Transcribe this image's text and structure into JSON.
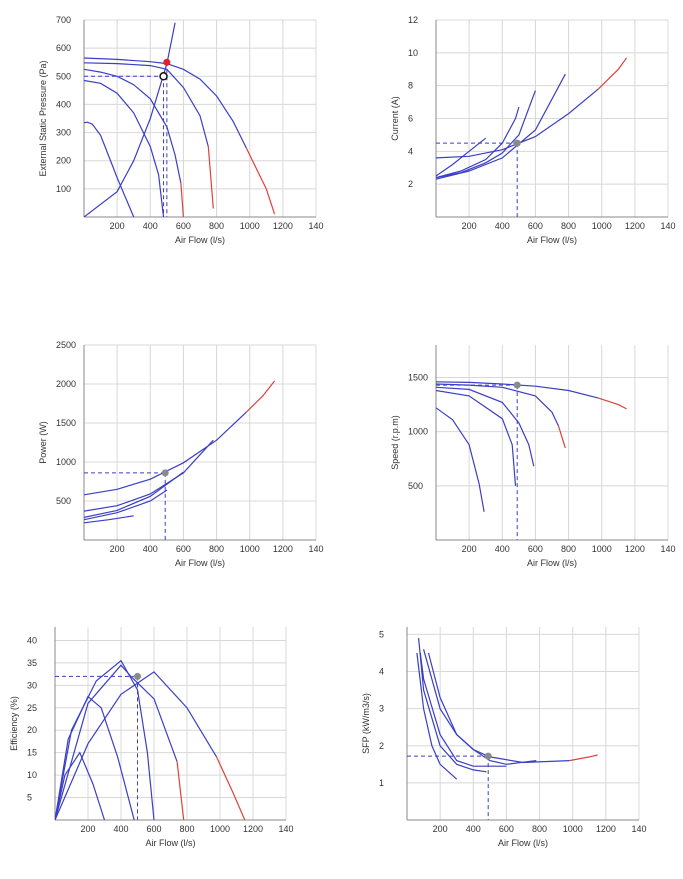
{
  "colors": {
    "curve": "#3a3fc4",
    "overload": "#e0403a",
    "grid": "#d8d8d8",
    "axis": "#888888",
    "duty": "#3a3fc4",
    "duty_point": "#8a8a8a",
    "duty_point_red": "#e0202a"
  },
  "chart_data": [
    {
      "id": "pressure",
      "type": "line",
      "xlabel": "Air Flow (l/s)",
      "ylabel": "External Static Pressure (Pa)",
      "xticks": [
        "200",
        "400",
        "600",
        "800",
        "1000",
        "1200",
        "140"
      ],
      "yticks": [
        "100",
        "200",
        "300",
        "400",
        "500",
        "600",
        "700"
      ],
      "xlim": [
        0,
        1400
      ],
      "ylim": [
        0,
        700
      ],
      "grid": true,
      "series": [
        {
          "values": [
            [
              0,
              335
            ],
            [
              20,
              337
            ],
            [
              50,
              330
            ],
            [
              100,
              290
            ],
            [
              150,
              215
            ],
            [
              200,
              140
            ],
            [
              250,
              70
            ],
            [
              300,
              0
            ]
          ]
        },
        {
          "values": [
            [
              0,
              485
            ],
            [
              100,
              475
            ],
            [
              200,
              440
            ],
            [
              300,
              370
            ],
            [
              400,
              250
            ],
            [
              450,
              150
            ],
            [
              480,
              0
            ]
          ]
        },
        {
          "values": [
            [
              0,
              525
            ],
            [
              100,
              515
            ],
            [
              200,
              500
            ],
            [
              300,
              470
            ],
            [
              400,
              420
            ],
            [
              500,
              320
            ],
            [
              550,
              220
            ],
            [
              585,
              120
            ]
          ],
          "overload_values": [
            [
              585,
              120
            ],
            [
              600,
              0
            ]
          ]
        },
        {
          "values": [
            [
              0,
              548
            ],
            [
              200,
              545
            ],
            [
              400,
              538
            ],
            [
              500,
              525
            ],
            [
              600,
              460
            ],
            [
              700,
              360
            ],
            [
              750,
              250
            ]
          ],
          "overload_values": [
            [
              750,
              250
            ],
            [
              760,
              180
            ],
            [
              780,
              30
            ]
          ]
        },
        {
          "values": [
            [
              0,
              565
            ],
            [
              200,
              560
            ],
            [
              400,
              552
            ],
            [
              500,
              545
            ],
            [
              600,
              525
            ],
            [
              700,
              490
            ],
            [
              800,
              430
            ],
            [
              900,
              340
            ],
            [
              980,
              245
            ]
          ],
          "overload_values": [
            [
              980,
              245
            ],
            [
              1050,
              160
            ],
            [
              1100,
              100
            ],
            [
              1150,
              10
            ]
          ]
        }
      ],
      "system_curves": [
        {
          "values": [
            [
              0,
              0
            ],
            [
              200,
              90
            ],
            [
              300,
              200
            ],
            [
              400,
              350
            ],
            [
              500,
              545
            ],
            [
              550,
              690
            ]
          ]
        }
      ],
      "duty_point": {
        "x": 480,
        "y": 500,
        "open": true
      },
      "duty_point_2": {
        "x": 500,
        "y": 550
      }
    },
    {
      "id": "current",
      "type": "line",
      "xlabel": "Air Flow (l/s)",
      "ylabel": "Current (A)",
      "xticks": [
        "200",
        "400",
        "600",
        "800",
        "1000",
        "1200",
        "140"
      ],
      "yticks": [
        "2",
        "4",
        "6",
        "8",
        "10",
        "12"
      ],
      "xlim": [
        0,
        1400
      ],
      "ylim": [
        0,
        12
      ],
      "grid": true,
      "series": [
        {
          "values": [
            [
              0,
              2.5
            ],
            [
              100,
              3.2
            ],
            [
              200,
              4.0
            ],
            [
              300,
              4.8
            ]
          ]
        },
        {
          "values": [
            [
              0,
              2.4
            ],
            [
              150,
              2.8
            ],
            [
              300,
              3.5
            ],
            [
              400,
              4.5
            ],
            [
              480,
              6.0
            ],
            [
              500,
              6.7
            ]
          ]
        },
        {
          "values": [
            [
              0,
              2.4
            ],
            [
              150,
              2.7
            ],
            [
              300,
              3.3
            ],
            [
              400,
              3.9
            ],
            [
              500,
              5.0
            ],
            [
              600,
              7.7
            ]
          ]
        },
        {
          "values": [
            [
              0,
              2.3
            ],
            [
              200,
              2.8
            ],
            [
              400,
              3.6
            ],
            [
              600,
              5.3
            ],
            [
              780,
              8.7
            ]
          ]
        },
        {
          "values": [
            [
              0,
              3.6
            ],
            [
              200,
              3.7
            ],
            [
              400,
              4.1
            ],
            [
              600,
              4.9
            ],
            [
              800,
              6.3
            ],
            [
              980,
              7.8
            ]
          ],
          "overload_values": [
            [
              980,
              7.8
            ],
            [
              1100,
              9.0
            ],
            [
              1150,
              9.7
            ]
          ]
        }
      ],
      "duty_point": {
        "x": 490,
        "y": 4.5
      }
    },
    {
      "id": "power",
      "type": "line",
      "xlabel": "Air Flow (l/s)",
      "ylabel": "Power (W)",
      "xticks": [
        "200",
        "400",
        "600",
        "800",
        "1000",
        "1200",
        "140"
      ],
      "yticks": [
        "500",
        "1000",
        "1500",
        "2000",
        "2500"
      ],
      "xlim": [
        0,
        1400
      ],
      "ylim": [
        0,
        2500
      ],
      "grid": true,
      "series": [
        {
          "values": [
            [
              0,
              220
            ],
            [
              150,
              260
            ],
            [
              300,
              310
            ]
          ]
        },
        {
          "values": [
            [
              0,
              260
            ],
            [
              200,
              350
            ],
            [
              400,
              500
            ],
            [
              500,
              640
            ]
          ]
        },
        {
          "values": [
            [
              0,
              290
            ],
            [
              200,
              380
            ],
            [
              400,
              560
            ],
            [
              600,
              870
            ]
          ]
        },
        {
          "values": [
            [
              0,
              370
            ],
            [
              200,
              440
            ],
            [
              400,
              590
            ],
            [
              600,
              860
            ],
            [
              780,
              1280
            ]
          ]
        },
        {
          "values": [
            [
              0,
              580
            ],
            [
              200,
              650
            ],
            [
              400,
              780
            ],
            [
              600,
              990
            ],
            [
              800,
              1280
            ],
            [
              980,
              1640
            ]
          ],
          "overload_values": [
            [
              980,
              1640
            ],
            [
              1080,
              1850
            ],
            [
              1150,
              2040
            ]
          ]
        }
      ],
      "duty_point": {
        "x": 490,
        "y": 860
      }
    },
    {
      "id": "speed",
      "type": "line",
      "xlabel": "Air Flow (l/s)",
      "ylabel": "Speed (r.p.m)",
      "xticks": [
        "200",
        "400",
        "600",
        "800",
        "1000",
        "1200",
        "140"
      ],
      "yticks": [
        "500",
        "1000",
        "1500"
      ],
      "xlim": [
        0,
        1400
      ],
      "ylim": [
        0,
        1800
      ],
      "grid": true,
      "series": [
        {
          "values": [
            [
              0,
              1220
            ],
            [
              100,
              1110
            ],
            [
              200,
              880
            ],
            [
              260,
              520
            ],
            [
              290,
              260
            ]
          ]
        },
        {
          "values": [
            [
              0,
              1380
            ],
            [
              200,
              1330
            ],
            [
              400,
              1120
            ],
            [
              460,
              880
            ],
            [
              480,
              500
            ]
          ]
        },
        {
          "values": [
            [
              0,
              1410
            ],
            [
              200,
              1390
            ],
            [
              400,
              1270
            ],
            [
              500,
              1080
            ],
            [
              560,
              880
            ],
            [
              590,
              680
            ]
          ]
        },
        {
          "values": [
            [
              0,
              1440
            ],
            [
              200,
              1430
            ],
            [
              400,
              1410
            ],
            [
              600,
              1330
            ],
            [
              700,
              1180
            ],
            [
              740,
              1050
            ]
          ],
          "overload_values": [
            [
              740,
              1050
            ],
            [
              760,
              950
            ],
            [
              780,
              850
            ]
          ]
        },
        {
          "values": [
            [
              0,
              1460
            ],
            [
              200,
              1455
            ],
            [
              400,
              1440
            ],
            [
              600,
              1420
            ],
            [
              800,
              1380
            ],
            [
              980,
              1310
            ]
          ],
          "overload_values": [
            [
              980,
              1310
            ],
            [
              1100,
              1250
            ],
            [
              1150,
              1210
            ]
          ]
        }
      ],
      "duty_point": {
        "x": 490,
        "y": 1430
      }
    },
    {
      "id": "efficiency",
      "type": "line",
      "xlabel": "Air Flow (l/s)",
      "ylabel": "Efficiency (%)",
      "xticks": [
        "200",
        "400",
        "600",
        "800",
        "1000",
        "1200",
        "140"
      ],
      "yticks": [
        "5",
        "10",
        "15",
        "20",
        "25",
        "30",
        "35",
        "40"
      ],
      "xlim": [
        0,
        1400
      ],
      "ylim": [
        0,
        43
      ],
      "grid": true,
      "series": [
        {
          "values": [
            [
              0,
              0
            ],
            [
              60,
              10
            ],
            [
              150,
              15
            ],
            [
              230,
              8
            ],
            [
              300,
              0
            ]
          ]
        },
        {
          "values": [
            [
              0,
              0
            ],
            [
              80,
              18
            ],
            [
              200,
              27.5
            ],
            [
              280,
              25
            ],
            [
              380,
              14
            ],
            [
              480,
              0
            ]
          ]
        },
        {
          "values": [
            [
              0,
              0
            ],
            [
              100,
              20
            ],
            [
              250,
              31
            ],
            [
              400,
              35.5
            ],
            [
              500,
              29
            ],
            [
              560,
              15
            ],
            [
              600,
              0
            ]
          ]
        },
        {
          "values": [
            [
              0,
              0
            ],
            [
              200,
              26
            ],
            [
              400,
              34.5
            ],
            [
              460,
              32
            ],
            [
              600,
              27
            ],
            [
              740,
              13
            ]
          ],
          "overload_values": [
            [
              740,
              13
            ],
            [
              780,
              0
            ]
          ]
        },
        {
          "values": [
            [
              0,
              0
            ],
            [
              200,
              17
            ],
            [
              400,
              28
            ],
            [
              600,
              33
            ],
            [
              800,
              25
            ],
            [
              980,
              14
            ]
          ],
          "overload_values": [
            [
              980,
              14
            ],
            [
              1080,
              6
            ],
            [
              1150,
              0
            ]
          ]
        }
      ],
      "duty_point": {
        "x": 500,
        "y": 32
      }
    },
    {
      "id": "sfp",
      "type": "line",
      "xlabel": "Air Flow (l/s)",
      "ylabel": "SFP (kW/m3/s)",
      "xticks": [
        "200",
        "400",
        "600",
        "800",
        "1000",
        "1200",
        "140"
      ],
      "yticks": [
        "1",
        "2",
        "3",
        "4",
        "5"
      ],
      "xlim": [
        0,
        1400
      ],
      "ylim": [
        0,
        5.2
      ],
      "grid": true,
      "series": [
        {
          "values": [
            [
              60,
              4.5
            ],
            [
              100,
              3.0
            ],
            [
              150,
              2.0
            ],
            [
              200,
              1.5
            ],
            [
              300,
              1.1
            ]
          ]
        },
        {
          "values": [
            [
              70,
              4.9
            ],
            [
              100,
              3.5
            ],
            [
              200,
              2.0
            ],
            [
              300,
              1.5
            ],
            [
              400,
              1.35
            ],
            [
              480,
              1.3
            ]
          ]
        },
        {
          "values": [
            [
              80,
              4.5
            ],
            [
              100,
              3.8
            ],
            [
              200,
              2.3
            ],
            [
              300,
              1.6
            ],
            [
              400,
              1.45
            ],
            [
              600,
              1.45
            ]
          ]
        },
        {
          "values": [
            [
              130,
              4.5
            ],
            [
              200,
              3.3
            ],
            [
              300,
              2.3
            ],
            [
              400,
              1.9
            ],
            [
              500,
              1.6
            ],
            [
              600,
              1.5
            ],
            [
              780,
              1.6
            ]
          ]
        },
        {
          "values": [
            [
              100,
              4.6
            ],
            [
              200,
              3.0
            ],
            [
              300,
              2.3
            ],
            [
              400,
              1.9
            ],
            [
              500,
              1.7
            ],
            [
              700,
              1.55
            ],
            [
              980,
              1.6
            ]
          ],
          "overload_values": [
            [
              980,
              1.6
            ],
            [
              1100,
              1.7
            ],
            [
              1150,
              1.75
            ]
          ]
        }
      ],
      "duty_point": {
        "x": 490,
        "y": 1.72
      }
    }
  ]
}
